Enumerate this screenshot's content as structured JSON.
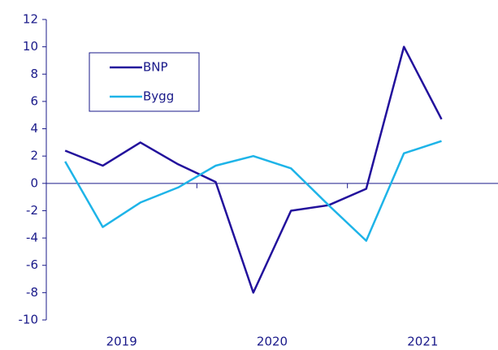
{
  "chart_data": {
    "type": "line",
    "groups": [
      "2019",
      "2020",
      "2021"
    ],
    "series": [
      {
        "name": "BNP",
        "color": "#22119c",
        "values": [
          2.4,
          1.3,
          3.0,
          1.4,
          0.1,
          -8.0,
          -2.0,
          -1.6,
          -0.4,
          10.0,
          4.7
        ]
      },
      {
        "name": "Bygg",
        "color": "#1eb4e8",
        "values": [
          1.6,
          -3.2,
          -1.4,
          -0.3,
          1.3,
          2.0,
          1.1,
          -1.6,
          -4.2,
          2.2,
          3.1
        ]
      }
    ],
    "ylim": [
      -10,
      12
    ],
    "yticks": [
      -10,
      -8,
      -6,
      -4,
      -2,
      0,
      2,
      4,
      6,
      8,
      10,
      12
    ],
    "legend": "upper left"
  }
}
